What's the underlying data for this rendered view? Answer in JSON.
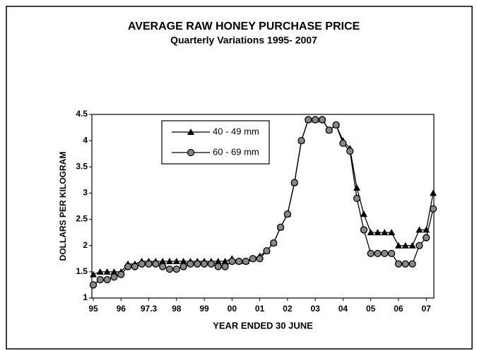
{
  "chart_data": {
    "type": "line",
    "title": "AVERAGE RAW HONEY PURCHASE PRICE",
    "subtitle": "Quarterly Variations 1995- 2007",
    "y_label": "DOLLARS PER KILOGRAM",
    "x_label": "YEAR ENDED 30 JUNE",
    "categories": [
      "95",
      null,
      null,
      null,
      "96",
      null,
      null,
      null,
      "97.3",
      null,
      null,
      null,
      "98",
      null,
      null,
      null,
      "99",
      null,
      null,
      null,
      "00",
      null,
      null,
      null,
      "01",
      null,
      null,
      null,
      "02",
      null,
      null,
      null,
      "03",
      null,
      null,
      null,
      "04",
      null,
      null,
      null,
      "05",
      null,
      null,
      null,
      "06",
      null,
      null,
      null,
      "07",
      null
    ],
    "series": [
      {
        "name": "40 - 49 mm",
        "color": "#000000",
        "marker": "triangle",
        "values": [
          1.45,
          1.5,
          1.5,
          1.5,
          1.5,
          1.65,
          1.65,
          1.7,
          1.7,
          1.7,
          1.7,
          1.7,
          1.7,
          1.7,
          1.7,
          1.7,
          1.7,
          1.7,
          1.7,
          1.7,
          1.75,
          1.7,
          1.7,
          1.75,
          1.8,
          1.9,
          2.05,
          2.35,
          2.6,
          3.2,
          4.0,
          4.4,
          4.4,
          4.4,
          4.2,
          4.3,
          4.0,
          3.85,
          3.1,
          2.6,
          2.25,
          2.25,
          2.25,
          2.25,
          2.0,
          2.0,
          2.0,
          2.3,
          2.3,
          3.0
        ]
      },
      {
        "name": "60 - 69 mm",
        "color": "#000000",
        "marker": "circle",
        "values": [
          1.25,
          1.35,
          1.35,
          1.4,
          1.45,
          1.6,
          1.6,
          1.65,
          1.65,
          1.65,
          1.6,
          1.55,
          1.55,
          1.6,
          1.65,
          1.65,
          1.65,
          1.65,
          1.6,
          1.6,
          1.7,
          1.7,
          1.7,
          1.75,
          1.75,
          1.9,
          2.05,
          2.35,
          2.6,
          3.2,
          4.0,
          4.4,
          4.4,
          4.4,
          4.2,
          4.3,
          3.95,
          3.8,
          2.9,
          2.3,
          1.85,
          1.85,
          1.85,
          1.85,
          1.65,
          1.65,
          1.65,
          2.0,
          2.15,
          2.7
        ]
      }
    ],
    "ylim": [
      1,
      4.5
    ],
    "yticks": [
      1,
      1.5,
      2,
      2.5,
      3,
      3.5,
      4,
      4.5
    ],
    "grid": false,
    "legend": "upper left"
  }
}
